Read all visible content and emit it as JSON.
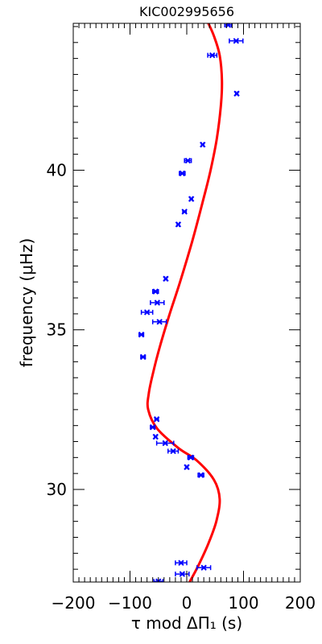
{
  "chart_data": {
    "type": "scatter",
    "title": "KIC002995656",
    "xlabel": "τ mod ΔΠ₁ (s)",
    "ylabel": "frequency (μHz)",
    "xlim": [
      -200,
      200
    ],
    "ylim": [
      27.1,
      44.6
    ],
    "x_ticks": [
      -200,
      -100,
      0,
      100,
      200
    ],
    "y_ticks": [
      30,
      35,
      40
    ],
    "grid": false,
    "colors": {
      "points": "#0000ff",
      "curve": "#ff0000",
      "axes": "#000000"
    },
    "series": [
      {
        "kind": "points-with-xerror",
        "points": [
          {
            "x": 73,
            "y": 44.55,
            "xerr": 6
          },
          {
            "x": 87,
            "y": 44.05,
            "xerr": 12
          },
          {
            "x": 45,
            "y": 43.6,
            "xerr": 8
          },
          {
            "x": 88,
            "y": 42.4,
            "xerr": 2
          },
          {
            "x": 28,
            "y": 40.8,
            "xerr": 2
          },
          {
            "x": 2,
            "y": 40.3,
            "xerr": 6
          },
          {
            "x": -8,
            "y": 39.9,
            "xerr": 5
          },
          {
            "x": 8,
            "y": 39.1,
            "xerr": 2
          },
          {
            "x": -4,
            "y": 38.7,
            "xerr": 3
          },
          {
            "x": -15,
            "y": 38.3,
            "xerr": 2
          },
          {
            "x": -37,
            "y": 36.6,
            "xerr": 2
          },
          {
            "x": -55,
            "y": 36.2,
            "xerr": 5
          },
          {
            "x": -52,
            "y": 35.85,
            "xerr": 12
          },
          {
            "x": -70,
            "y": 35.55,
            "xerr": 10
          },
          {
            "x": -48,
            "y": 35.25,
            "xerr": 12
          },
          {
            "x": -80,
            "y": 34.85,
            "xerr": 4
          },
          {
            "x": -77,
            "y": 34.15,
            "xerr": 4
          },
          {
            "x": -53,
            "y": 32.2,
            "xerr": 3
          },
          {
            "x": -60,
            "y": 31.95,
            "xerr": 4
          },
          {
            "x": -55,
            "y": 31.65,
            "xerr": 2
          },
          {
            "x": -38,
            "y": 31.45,
            "xerr": 15
          },
          {
            "x": -24,
            "y": 31.2,
            "xerr": 9
          },
          {
            "x": 7,
            "y": 31.0,
            "xerr": 5
          },
          {
            "x": 0,
            "y": 30.7,
            "xerr": 2
          },
          {
            "x": 25,
            "y": 30.45,
            "xerr": 5
          },
          {
            "x": -10,
            "y": 27.7,
            "xerr": 10
          },
          {
            "x": 30,
            "y": 27.55,
            "xerr": 12
          },
          {
            "x": -8,
            "y": 27.35,
            "xerr": 12
          },
          {
            "x": -50,
            "y": 27.12,
            "xerr": 8
          }
        ]
      },
      {
        "kind": "model-curve",
        "points": [
          {
            "x": 5,
            "y": 27.1
          },
          {
            "x": 20,
            "y": 27.6
          },
          {
            "x": 38,
            "y": 28.3
          },
          {
            "x": 52,
            "y": 29.0
          },
          {
            "x": 58,
            "y": 29.7
          },
          {
            "x": 48,
            "y": 30.3
          },
          {
            "x": 18,
            "y": 30.9
          },
          {
            "x": -15,
            "y": 31.3
          },
          {
            "x": -52,
            "y": 31.9
          },
          {
            "x": -68,
            "y": 32.5
          },
          {
            "x": -67,
            "y": 33.0
          },
          {
            "x": -60,
            "y": 33.6
          },
          {
            "x": -47,
            "y": 34.5
          },
          {
            "x": -30,
            "y": 35.5
          },
          {
            "x": -10,
            "y": 36.6
          },
          {
            "x": 10,
            "y": 37.8
          },
          {
            "x": 28,
            "y": 39.0
          },
          {
            "x": 42,
            "y": 40.0
          },
          {
            "x": 53,
            "y": 41.0
          },
          {
            "x": 60,
            "y": 42.0
          },
          {
            "x": 62,
            "y": 42.8
          },
          {
            "x": 58,
            "y": 43.6
          },
          {
            "x": 48,
            "y": 44.2
          },
          {
            "x": 38,
            "y": 44.6
          }
        ]
      }
    ]
  }
}
